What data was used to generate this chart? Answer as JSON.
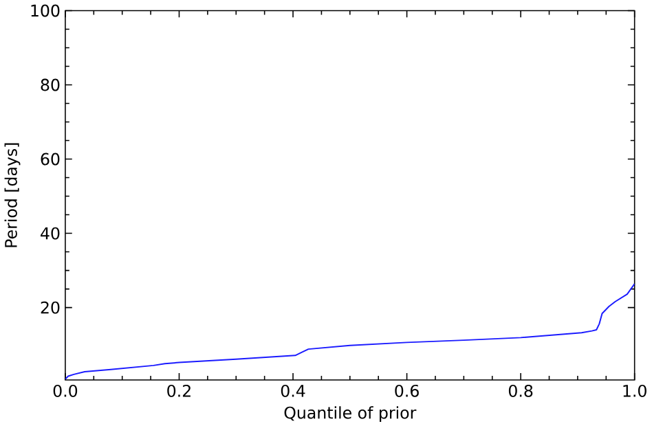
{
  "chart_data": {
    "type": "line",
    "xlabel": "Quantile of prior",
    "ylabel": "Period [days]",
    "x": [
      0,
      0.005,
      0.015,
      0.034,
      0.08,
      0.155,
      0.175,
      0.2,
      0.3,
      0.404,
      0.415,
      0.427,
      0.5,
      0.6,
      0.7,
      0.8,
      0.907,
      0.925,
      0.933,
      0.938,
      0.943,
      0.955,
      0.966,
      0.987,
      1
    ],
    "series": [
      {
        "color": "#1a1aff",
        "values": [
          0.7,
          1.5,
          2.0,
          2.7,
          3.3,
          4.4,
          4.9,
          5.2,
          6.1,
          7.1,
          7.9,
          8.8,
          9.8,
          10.6,
          11.2,
          11.9,
          13.2,
          13.7,
          14.0,
          15.6,
          18.4,
          20.3,
          21.6,
          23.6,
          26.4
        ]
      }
    ],
    "xlim": [
      0,
      1
    ],
    "ylim": [
      0.5,
      100
    ],
    "xticks": [
      {
        "value": 0,
        "label": "0.0"
      },
      0.2,
      0.4,
      0.6,
      0.8,
      {
        "value": 1,
        "label": "1.0"
      }
    ],
    "yticks": [
      20,
      40,
      60,
      80,
      100
    ],
    "marker": "none",
    "line_style": "solid"
  }
}
